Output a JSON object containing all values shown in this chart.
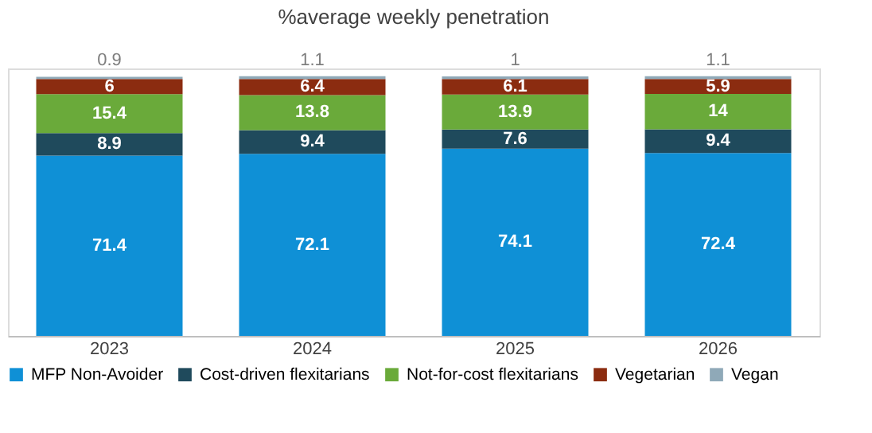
{
  "chart_data": {
    "type": "bar",
    "title": "%average weekly penetration",
    "stacked": true,
    "data_labels": true,
    "legend": "bottom",
    "grid": false,
    "categories": [
      "2023",
      "2024",
      "2025",
      "2026"
    ],
    "series": [
      {
        "name": "MFP Non-Avoider",
        "color": "#0f90d6",
        "values": [
          71.4,
          72.1,
          74.1,
          72.4
        ]
      },
      {
        "name": "Cost-driven flexitarians",
        "color": "#1f4a5c",
        "values": [
          8.9,
          9.4,
          7.6,
          9.4
        ]
      },
      {
        "name": "Not-for-cost flexitarians",
        "color": "#6aaa3a",
        "values": [
          15.4,
          13.8,
          13.9,
          14
        ]
      },
      {
        "name": "Vegetarian",
        "color": "#8b2c10",
        "values": [
          6,
          6.4,
          6.1,
          5.9
        ]
      },
      {
        "name": "Vegan",
        "color": "#8fa9b8",
        "values": [
          0.9,
          1.1,
          1,
          1.1
        ]
      }
    ]
  }
}
